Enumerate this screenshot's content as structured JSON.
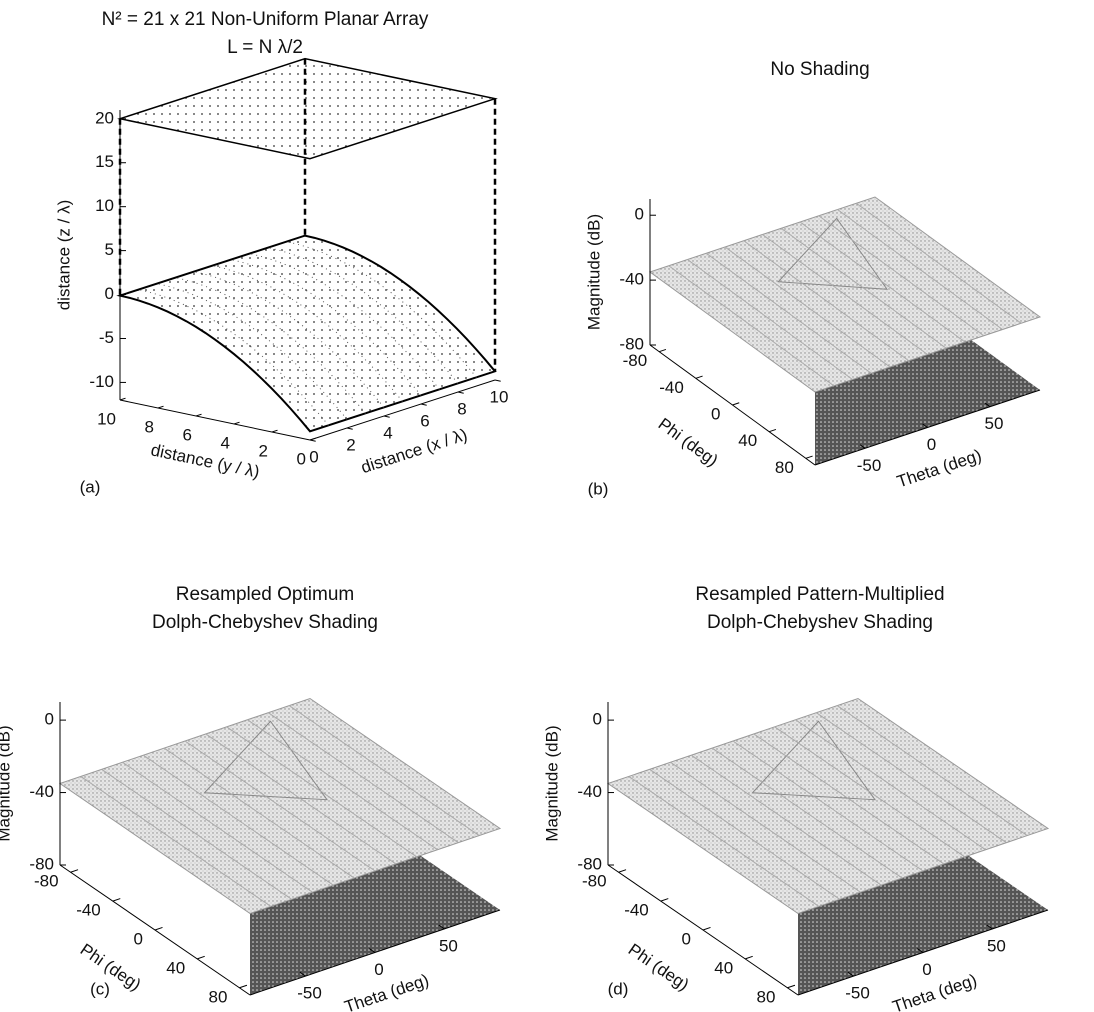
{
  "chart_data": [
    {
      "type": "array3d",
      "title": [
        "N² = 21 x 21 Non-Uniform Planar Array",
        "L = N λ/2"
      ],
      "panel_label": "(a)",
      "xlabel": "distance  (x / λ)",
      "ylabel": "distance  (y / λ)",
      "zlabel": "distance  (z / λ)",
      "xlim": [
        0,
        10
      ],
      "xticks": [
        0,
        2,
        4,
        6,
        8,
        10
      ],
      "ylim": [
        0,
        10
      ],
      "yticks": [
        0,
        2,
        4,
        6,
        8,
        10
      ],
      "zlim": [
        -12,
        21
      ],
      "zticks": [
        -10,
        -5,
        0,
        5,
        10,
        15,
        20
      ]
    },
    {
      "type": "surface3d",
      "title": [
        "No Shading"
      ],
      "panel_label": "(b)",
      "xlabel": "Theta (deg)",
      "ylabel": "Phi (deg)",
      "zlabel": "Magnitude (dB)",
      "xlim": [
        -90,
        90
      ],
      "xticks": [
        -50,
        0,
        50
      ],
      "ylim": [
        -90,
        90
      ],
      "yticks": [
        -80,
        -40,
        0,
        40,
        80
      ],
      "zlim": [
        -80,
        10
      ],
      "zticks": [
        -80,
        -40,
        0
      ]
    },
    {
      "type": "surface3d",
      "title": [
        "Resampled Optimum",
        "Dolph-Chebyshev Shading"
      ],
      "panel_label": "(c)",
      "xlabel": "Theta (deg)",
      "ylabel": "Phi (deg)",
      "zlabel": "Magnitude (dB)",
      "xlim": [
        -90,
        90
      ],
      "xticks": [
        -50,
        0,
        50
      ],
      "ylim": [
        -90,
        90
      ],
      "yticks": [
        -80,
        -40,
        0,
        40,
        80
      ],
      "zlim": [
        -80,
        10
      ],
      "zticks": [
        -80,
        -40,
        0
      ]
    },
    {
      "type": "surface3d",
      "title": [
        "Resampled Pattern-Multiplied",
        "Dolph-Chebyshev Shading"
      ],
      "panel_label": "(d)",
      "xlabel": "Theta (deg)",
      "ylabel": "Phi (deg)",
      "zlabel": "Magnitude (dB)",
      "xlim": [
        -90,
        90
      ],
      "xticks": [
        -50,
        0,
        50
      ],
      "ylim": [
        -90,
        90
      ],
      "yticks": [
        -80,
        -40,
        0,
        40,
        80
      ],
      "zlim": [
        -80,
        10
      ],
      "zticks": [
        -80,
        -40,
        0
      ]
    }
  ]
}
